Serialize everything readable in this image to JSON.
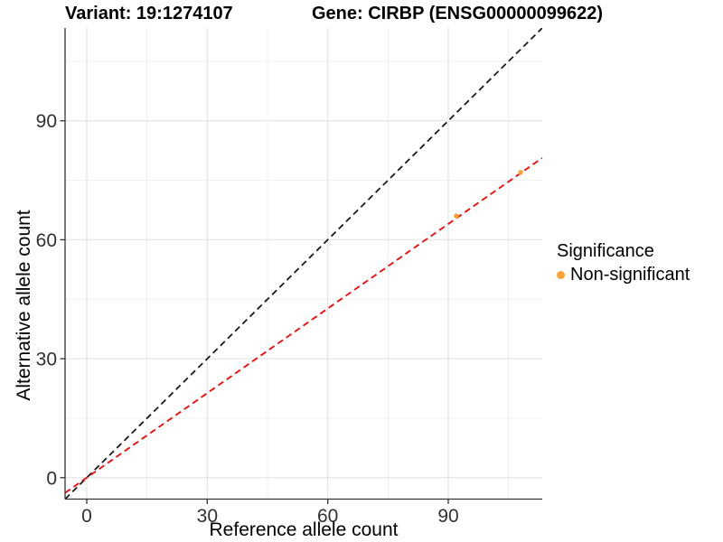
{
  "chart_data": {
    "type": "scatter",
    "titles": {
      "left": "Variant: 19:1274107",
      "right": "Gene: CIRBP (ENSG00000099622)"
    },
    "xlabel": "Reference allele count",
    "ylabel": "Alternative allele count",
    "xlim": [
      -5.4,
      113.4
    ],
    "ylim": [
      -5.4,
      113.4
    ],
    "xticks": [
      0,
      30,
      60,
      90
    ],
    "yticks": [
      0,
      30,
      60,
      90
    ],
    "xticks_minor": [
      15,
      45,
      75,
      105
    ],
    "yticks_minor": [
      15,
      45,
      75,
      105
    ],
    "grid": {
      "major": true,
      "minor": true
    },
    "points": [
      {
        "x": 92,
        "y": 66,
        "significance": "Non-significant"
      },
      {
        "x": 108,
        "y": 77,
        "significance": "Non-significant"
      }
    ],
    "lines": [
      {
        "name": "identity-line",
        "slope": 1,
        "intercept": 0,
        "style": "dashed",
        "color": "#1a1a1a"
      },
      {
        "name": "fitted-line",
        "slope": 0.711,
        "intercept": 0,
        "style": "dashed",
        "color": "#ff0000"
      }
    ],
    "legend": {
      "title": "Significance",
      "position": "right",
      "entries": [
        {
          "label": "Non-significant",
          "color": "#F9A22F",
          "marker": "circle"
        }
      ]
    },
    "colors": {
      "point": "#F9A22F",
      "grid_major": "#e6e6e6",
      "grid_minor": "#f0f0f0",
      "axis": "#333333",
      "tick_label": "#303030",
      "background": "#ffffff"
    }
  }
}
